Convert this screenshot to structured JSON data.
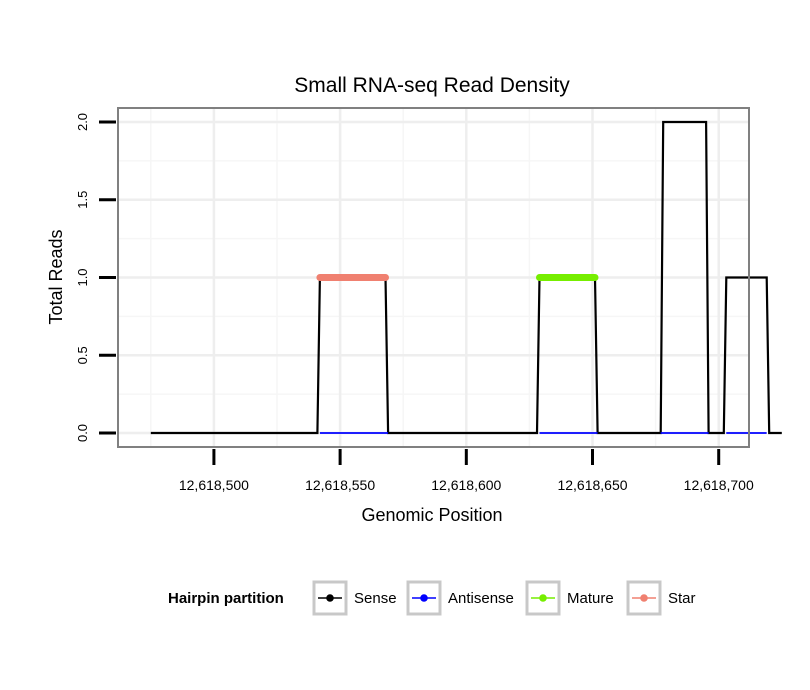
{
  "chart_data": {
    "type": "line",
    "title": "Small RNA-seq Read Density",
    "xlabel": "Genomic Position",
    "ylabel": "Total Reads",
    "xlim": [
      12618462,
      12618712
    ],
    "ylim": [
      -0.09,
      2.09
    ],
    "x_ticks": [
      {
        "value": 12618500,
        "label": "12,618,500"
      },
      {
        "value": 12618550,
        "label": "12,618,550"
      },
      {
        "value": 12618600,
        "label": "12,618,600"
      },
      {
        "value": 12618650,
        "label": "12,618,650"
      },
      {
        "value": 12618700,
        "label": "12,618,700"
      }
    ],
    "y_ticks": [
      {
        "value": 0.0,
        "label": "0.0"
      },
      {
        "value": 0.5,
        "label": "0.5"
      },
      {
        "value": 1.0,
        "label": "1.0"
      },
      {
        "value": 1.5,
        "label": "1.5"
      },
      {
        "value": 2.0,
        "label": "2.0"
      }
    ],
    "series": [
      {
        "name": "Sense",
        "color": "#000000",
        "width": 2.2,
        "x": [
          12618475,
          12618541,
          12618542,
          12618568,
          12618569,
          12618628,
          12618629,
          12618651,
          12618652,
          12618677,
          12618678,
          12618695,
          12618696,
          12618702,
          12618703,
          12618719,
          12618720,
          12618725
        ],
        "y": [
          0,
          0,
          1,
          1,
          0,
          0,
          1,
          1,
          0,
          0,
          2,
          2,
          0,
          0,
          1,
          1,
          0,
          0
        ]
      },
      {
        "name": "Antisense",
        "color": "#0000ff",
        "width": 1.8,
        "x": [
          12618542,
          12618569,
          12618629,
          12618652,
          12618677,
          12618696,
          12618703,
          12618719
        ],
        "y": [
          0,
          0,
          0,
          0,
          0,
          0,
          0,
          0
        ],
        "segments": [
          [
            0,
            1
          ],
          [
            2,
            3
          ],
          [
            4,
            5
          ],
          [
            6,
            7
          ]
        ]
      },
      {
        "name": "Mature",
        "color": "#76ee00",
        "width": 7,
        "x": [
          12618629,
          12618651
        ],
        "y": [
          1,
          1
        ]
      },
      {
        "name": "Star",
        "color": "#f08070",
        "width": 7,
        "x": [
          12618542,
          12618568
        ],
        "y": [
          1,
          1
        ]
      }
    ],
    "legend": {
      "title": "Hairpin partition",
      "position": "bottom",
      "entries": [
        "Sense",
        "Antisense",
        "Mature",
        "Star"
      ]
    },
    "grid": true
  }
}
